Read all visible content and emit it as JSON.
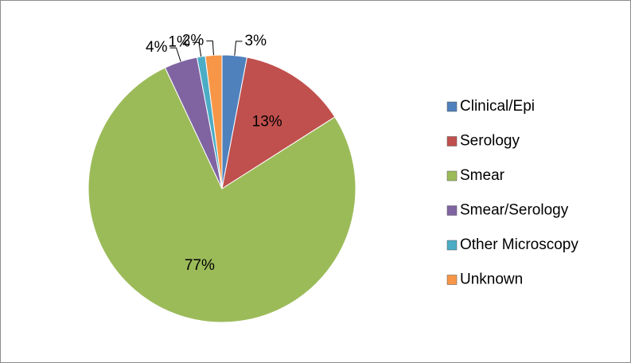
{
  "chart_data": {
    "type": "pie",
    "categories": [
      "Clinical/Epi",
      "Serology",
      "Smear",
      "Smear/Serology",
      "Other Microscopy",
      "Unknown"
    ],
    "values": [
      3,
      13,
      77,
      4,
      1,
      2
    ],
    "value_labels": [
      "3%",
      "13%",
      "77%",
      "4%",
      "1%",
      "2%"
    ],
    "colors": [
      "#4f81bd",
      "#c0504d",
      "#9bbb59",
      "#8064a2",
      "#4bacc6",
      "#f79646"
    ],
    "legend": "right"
  }
}
